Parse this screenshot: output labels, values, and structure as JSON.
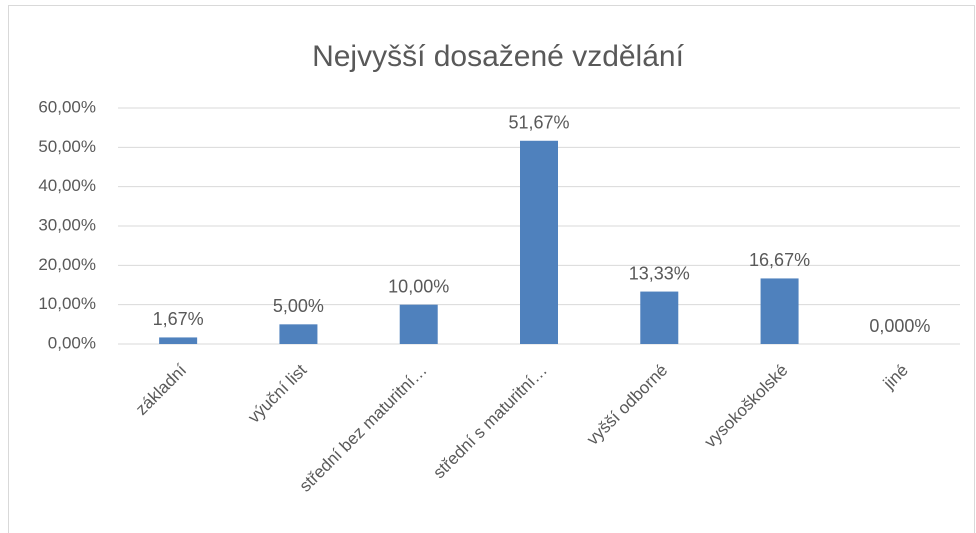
{
  "chart_data": {
    "type": "bar",
    "title": "Nejvyšší dosažené vzdělání",
    "categories": [
      "základní",
      "výuční list",
      "střední bez maturitní…",
      "střední s maturitní…",
      "vyšší odborné",
      "vysokoškolské",
      "jiné"
    ],
    "values": [
      1.67,
      5,
      10,
      51.67,
      13.33,
      16.67,
      0
    ],
    "value_labels": [
      "1,67%",
      "5,00%",
      "10,00%",
      "51,67%",
      "13,33%",
      "16,67%",
      "0,000%"
    ],
    "color": "#4f81bd",
    "ylim": [
      0,
      60
    ],
    "yticks": [
      {
        "value": 0,
        "label": "0,00%"
      },
      {
        "value": 10,
        "label": "10,00%"
      },
      {
        "value": 20,
        "label": "20,00%"
      },
      {
        "value": 30,
        "label": "30,00%"
      },
      {
        "value": 40,
        "label": "40,00%"
      },
      {
        "value": 50,
        "label": "50,00%"
      },
      {
        "value": 60,
        "label": "60,00%"
      }
    ],
    "grid": true
  }
}
